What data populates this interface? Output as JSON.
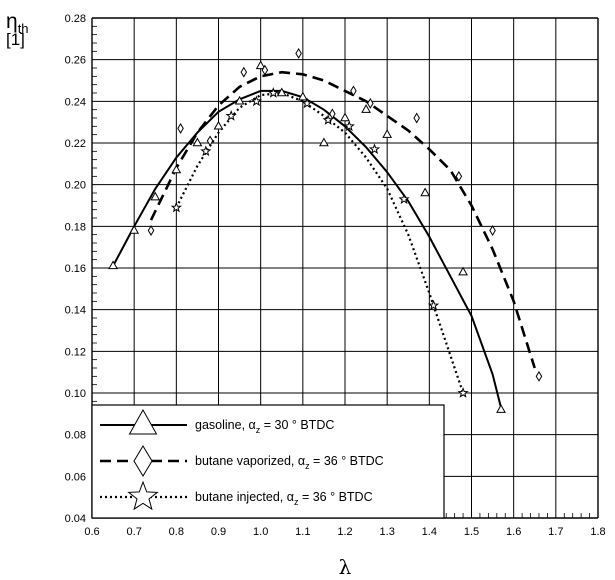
{
  "chart_data": {
    "type": "line",
    "ylabel_symbol": "η",
    "ylabel_sub": "th",
    "ylabel_unit": "[1]",
    "xlabel": "λ",
    "xlim": [
      0.6,
      1.8
    ],
    "ylim": [
      0.04,
      0.28
    ],
    "x_ticks": [
      "0.6",
      "0.7",
      "0.8",
      "0.9",
      "1.0",
      "1.1",
      "1.2",
      "1.3",
      "1.4",
      "1.5",
      "1.6",
      "1.7",
      "1.8"
    ],
    "y_ticks": [
      "0.04",
      "0.06",
      "0.08",
      "0.10",
      "0.12",
      "0.14",
      "0.16",
      "0.18",
      "0.20",
      "0.22",
      "0.24",
      "0.26",
      "0.28"
    ],
    "grid": true,
    "legend_position": "bottom-left",
    "series": [
      {
        "name_pre": "gasoline, α",
        "name_sub": "z",
        "name_post": " = 30 ° BTDC",
        "marker": "triangle",
        "line_style": "solid",
        "points": [
          [
            0.65,
            0.161
          ],
          [
            0.7,
            0.178
          ],
          [
            0.75,
            0.194
          ],
          [
            0.8,
            0.207
          ],
          [
            0.85,
            0.22
          ],
          [
            0.9,
            0.228
          ],
          [
            0.95,
            0.24
          ],
          [
            1.0,
            0.257
          ],
          [
            1.05,
            0.244
          ],
          [
            1.1,
            0.242
          ],
          [
            1.15,
            0.22
          ],
          [
            1.2,
            0.232
          ],
          [
            1.25,
            0.236
          ],
          [
            1.3,
            0.224
          ],
          [
            1.39,
            0.196
          ],
          [
            1.48,
            0.158
          ],
          [
            1.57,
            0.092
          ]
        ],
        "fit": [
          [
            0.65,
            0.161
          ],
          [
            0.7,
            0.18
          ],
          [
            0.75,
            0.198
          ],
          [
            0.8,
            0.213
          ],
          [
            0.85,
            0.225
          ],
          [
            0.9,
            0.235
          ],
          [
            0.95,
            0.241
          ],
          [
            1.0,
            0.245
          ],
          [
            1.05,
            0.245
          ],
          [
            1.1,
            0.242
          ],
          [
            1.15,
            0.236
          ],
          [
            1.2,
            0.228
          ],
          [
            1.25,
            0.218
          ],
          [
            1.3,
            0.206
          ],
          [
            1.35,
            0.192
          ],
          [
            1.4,
            0.175
          ],
          [
            1.45,
            0.156
          ],
          [
            1.5,
            0.137
          ],
          [
            1.55,
            0.109
          ],
          [
            1.57,
            0.093
          ]
        ]
      },
      {
        "name_pre": "butane vaporized, α",
        "name_sub": "z",
        "name_post": " = 36 ° BTDC",
        "marker": "diamond",
        "line_style": "dashed",
        "points": [
          [
            0.74,
            0.178
          ],
          [
            0.81,
            0.227
          ],
          [
            0.88,
            0.221
          ],
          [
            0.96,
            0.254
          ],
          [
            1.01,
            0.255
          ],
          [
            1.09,
            0.263
          ],
          [
            1.17,
            0.234
          ],
          [
            1.22,
            0.245
          ],
          [
            1.26,
            0.239
          ],
          [
            1.37,
            0.232
          ],
          [
            1.47,
            0.204
          ],
          [
            1.55,
            0.178
          ],
          [
            1.66,
            0.108
          ]
        ],
        "fit": [
          [
            0.74,
            0.183
          ],
          [
            0.8,
            0.208
          ],
          [
            0.85,
            0.225
          ],
          [
            0.9,
            0.238
          ],
          [
            0.95,
            0.247
          ],
          [
            1.0,
            0.252
          ],
          [
            1.05,
            0.254
          ],
          [
            1.1,
            0.253
          ],
          [
            1.15,
            0.25
          ],
          [
            1.2,
            0.245
          ],
          [
            1.25,
            0.24
          ],
          [
            1.3,
            0.233
          ],
          [
            1.35,
            0.226
          ],
          [
            1.4,
            0.217
          ],
          [
            1.45,
            0.207
          ],
          [
            1.5,
            0.19
          ],
          [
            1.55,
            0.169
          ],
          [
            1.6,
            0.144
          ],
          [
            1.65,
            0.112
          ]
        ]
      },
      {
        "name_pre": "butane injected, α",
        "name_sub": "z",
        "name_post": " = 36 ° BTDC",
        "marker": "star",
        "line_style": "dotted",
        "points": [
          [
            0.8,
            0.189
          ],
          [
            0.87,
            0.216
          ],
          [
            0.93,
            0.233
          ],
          [
            0.99,
            0.24
          ],
          [
            1.03,
            0.244
          ],
          [
            1.11,
            0.239
          ],
          [
            1.16,
            0.231
          ],
          [
            1.21,
            0.228
          ],
          [
            1.27,
            0.217
          ],
          [
            1.34,
            0.193
          ],
          [
            1.41,
            0.142
          ],
          [
            1.48,
            0.1
          ]
        ],
        "fit": [
          [
            0.8,
            0.189
          ],
          [
            0.85,
            0.209
          ],
          [
            0.9,
            0.225
          ],
          [
            0.95,
            0.237
          ],
          [
            1.0,
            0.243
          ],
          [
            1.05,
            0.244
          ],
          [
            1.1,
            0.24
          ],
          [
            1.15,
            0.233
          ],
          [
            1.2,
            0.225
          ],
          [
            1.25,
            0.213
          ],
          [
            1.3,
            0.198
          ],
          [
            1.35,
            0.176
          ],
          [
            1.4,
            0.148
          ],
          [
            1.45,
            0.118
          ],
          [
            1.48,
            0.1
          ]
        ]
      }
    ]
  }
}
